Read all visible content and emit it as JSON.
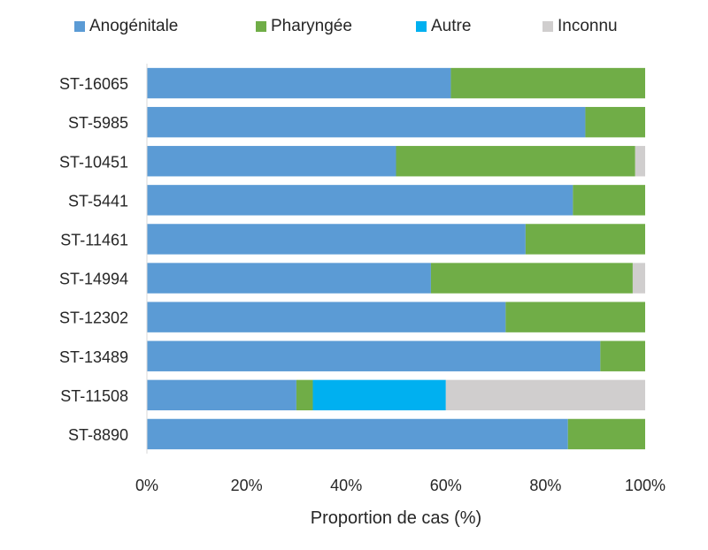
{
  "chart_data": {
    "type": "bar",
    "orientation": "horizontal",
    "stacked": "percent",
    "title": "",
    "xlabel": "Proportion de cas (%)",
    "ylabel": "",
    "xlim": [
      0,
      100
    ],
    "x_ticks": [
      "0%",
      "20%",
      "40%",
      "60%",
      "80%",
      "100%"
    ],
    "legend_position": "top",
    "grid": false,
    "categories": [
      "ST-16065",
      "ST-5985",
      "ST-10451",
      "ST-5441",
      "ST-11461",
      "ST-14994",
      "ST-12302",
      "ST-13489",
      "ST-11508",
      "ST-8890"
    ],
    "series": [
      {
        "name": "Anogénitale",
        "color": "#5B9BD5",
        "values": [
          61,
          88,
          50,
          85.5,
          76,
          57,
          72,
          91,
          30,
          84.5
        ]
      },
      {
        "name": "Pharyngée",
        "color": "#70AD47",
        "values": [
          39,
          12,
          48,
          14.5,
          24,
          40.5,
          28,
          9,
          3.3,
          15.5
        ]
      },
      {
        "name": "Autre",
        "color": "#00B0F0",
        "values": [
          0,
          0,
          0,
          0,
          0,
          0,
          0,
          0,
          26.7,
          0
        ]
      },
      {
        "name": "Inconnu",
        "color": "#D0CECE",
        "values": [
          0,
          0,
          2,
          0,
          0,
          2.5,
          0,
          0,
          40,
          0
        ]
      }
    ]
  }
}
